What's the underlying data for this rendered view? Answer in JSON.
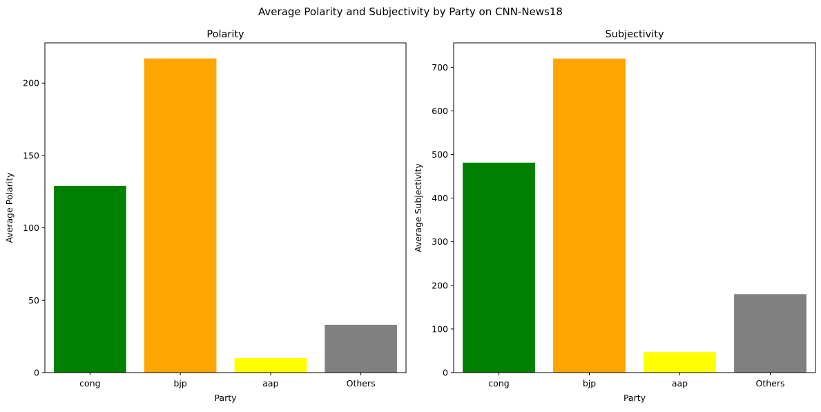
{
  "figure": {
    "title": "Average Polarity and Subjectivity by Party on CNN-News18"
  },
  "chart_data": [
    {
      "type": "bar",
      "title": "Polarity",
      "xlabel": "Party",
      "ylabel": "Average Polarity",
      "categories": [
        "cong",
        "bjp",
        "aap",
        "Others"
      ],
      "values": [
        129,
        217,
        10,
        33
      ],
      "colors": [
        "#008000",
        "#ffa500",
        "#ffff00",
        "#808080"
      ],
      "ylim": [
        0,
        227.8
      ],
      "yticks": [
        0,
        50,
        100,
        150,
        200
      ],
      "grid": false
    },
    {
      "type": "bar",
      "title": "Subjectivity",
      "xlabel": "Party",
      "ylabel": "Average Subjectivity",
      "categories": [
        "cong",
        "bjp",
        "aap",
        "Others"
      ],
      "values": [
        481,
        720,
        47,
        180
      ],
      "colors": [
        "#008000",
        "#ffa500",
        "#ffff00",
        "#808080"
      ],
      "ylim": [
        0,
        756
      ],
      "yticks": [
        0,
        100,
        200,
        300,
        400,
        500,
        600,
        700
      ],
      "grid": false
    }
  ]
}
